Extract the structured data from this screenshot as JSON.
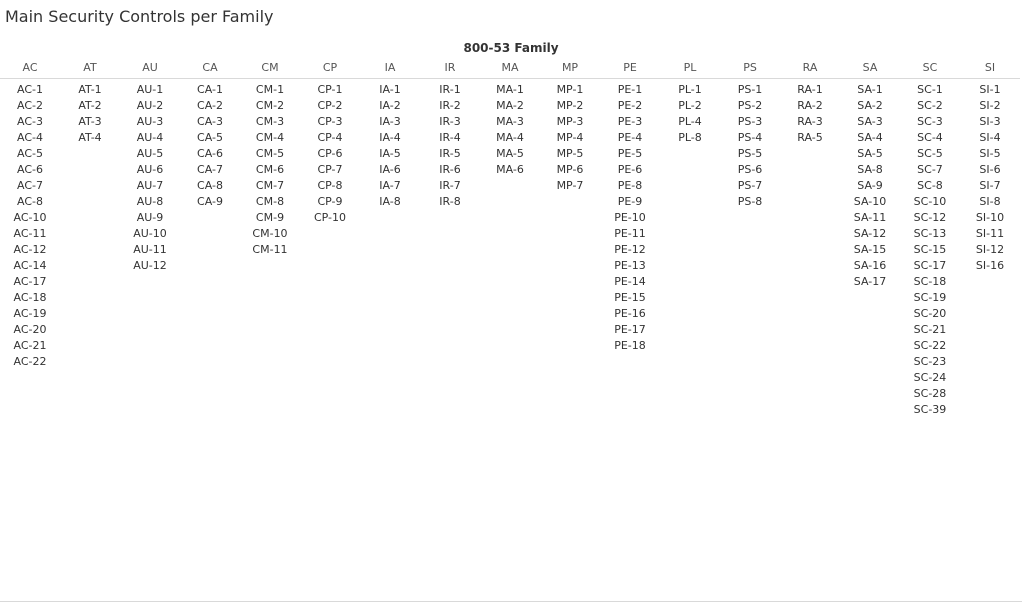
{
  "title": "Main Security Controls per Family",
  "family_label": "800-53 Family",
  "families": [
    {
      "code": "AC",
      "controls": [
        "AC-1",
        "AC-2",
        "AC-3",
        "AC-4",
        "AC-5",
        "AC-6",
        "AC-7",
        "AC-8",
        "AC-10",
        "AC-11",
        "AC-12",
        "AC-14",
        "AC-17",
        "AC-18",
        "AC-19",
        "AC-20",
        "AC-21",
        "AC-22"
      ]
    },
    {
      "code": "AT",
      "controls": [
        "AT-1",
        "AT-2",
        "AT-3",
        "AT-4"
      ]
    },
    {
      "code": "AU",
      "controls": [
        "AU-1",
        "AU-2",
        "AU-3",
        "AU-4",
        "AU-5",
        "AU-6",
        "AU-7",
        "AU-8",
        "AU-9",
        "AU-10",
        "AU-11",
        "AU-12"
      ]
    },
    {
      "code": "CA",
      "controls": [
        "CA-1",
        "CA-2",
        "CA-3",
        "CA-5",
        "CA-6",
        "CA-7",
        "CA-8",
        "CA-9"
      ]
    },
    {
      "code": "CM",
      "controls": [
        "CM-1",
        "CM-2",
        "CM-3",
        "CM-4",
        "CM-5",
        "CM-6",
        "CM-7",
        "CM-8",
        "CM-9",
        "CM-10",
        "CM-11"
      ]
    },
    {
      "code": "CP",
      "controls": [
        "CP-1",
        "CP-2",
        "CP-3",
        "CP-4",
        "CP-6",
        "CP-7",
        "CP-8",
        "CP-9",
        "CP-10"
      ]
    },
    {
      "code": "IA",
      "controls": [
        "IA-1",
        "IA-2",
        "IA-3",
        "IA-4",
        "IA-5",
        "IA-6",
        "IA-7",
        "IA-8"
      ]
    },
    {
      "code": "IR",
      "controls": [
        "IR-1",
        "IR-2",
        "IR-3",
        "IR-4",
        "IR-5",
        "IR-6",
        "IR-7",
        "IR-8"
      ]
    },
    {
      "code": "MA",
      "controls": [
        "MA-1",
        "MA-2",
        "MA-3",
        "MA-4",
        "MA-5",
        "MA-6"
      ]
    },
    {
      "code": "MP",
      "controls": [
        "MP-1",
        "MP-2",
        "MP-3",
        "MP-4",
        "MP-5",
        "MP-6",
        "MP-7"
      ]
    },
    {
      "code": "PE",
      "controls": [
        "PE-1",
        "PE-2",
        "PE-3",
        "PE-4",
        "PE-5",
        "PE-6",
        "PE-8",
        "PE-9",
        "PE-10",
        "PE-11",
        "PE-12",
        "PE-13",
        "PE-14",
        "PE-15",
        "PE-16",
        "PE-17",
        "PE-18"
      ]
    },
    {
      "code": "PL",
      "controls": [
        "PL-1",
        "PL-2",
        "PL-4",
        "PL-8"
      ]
    },
    {
      "code": "PS",
      "controls": [
        "PS-1",
        "PS-2",
        "PS-3",
        "PS-4",
        "PS-5",
        "PS-6",
        "PS-7",
        "PS-8"
      ]
    },
    {
      "code": "RA",
      "controls": [
        "RA-1",
        "RA-2",
        "RA-3",
        "RA-5"
      ]
    },
    {
      "code": "SA",
      "controls": [
        "SA-1",
        "SA-2",
        "SA-3",
        "SA-4",
        "SA-5",
        "SA-8",
        "SA-9",
        "SA-10",
        "SA-11",
        "SA-12",
        "SA-15",
        "SA-16",
        "SA-17"
      ]
    },
    {
      "code": "SC",
      "controls": [
        "SC-1",
        "SC-2",
        "SC-3",
        "SC-4",
        "SC-5",
        "SC-7",
        "SC-8",
        "SC-10",
        "SC-12",
        "SC-13",
        "SC-15",
        "SC-17",
        "SC-18",
        "SC-19",
        "SC-20",
        "SC-21",
        "SC-22",
        "SC-23",
        "SC-24",
        "SC-28",
        "SC-39"
      ]
    },
    {
      "code": "SI",
      "controls": [
        "SI-1",
        "SI-2",
        "SI-3",
        "SI-4",
        "SI-5",
        "SI-6",
        "SI-7",
        "SI-8",
        "SI-10",
        "SI-11",
        "SI-12",
        "SI-16"
      ]
    }
  ]
}
